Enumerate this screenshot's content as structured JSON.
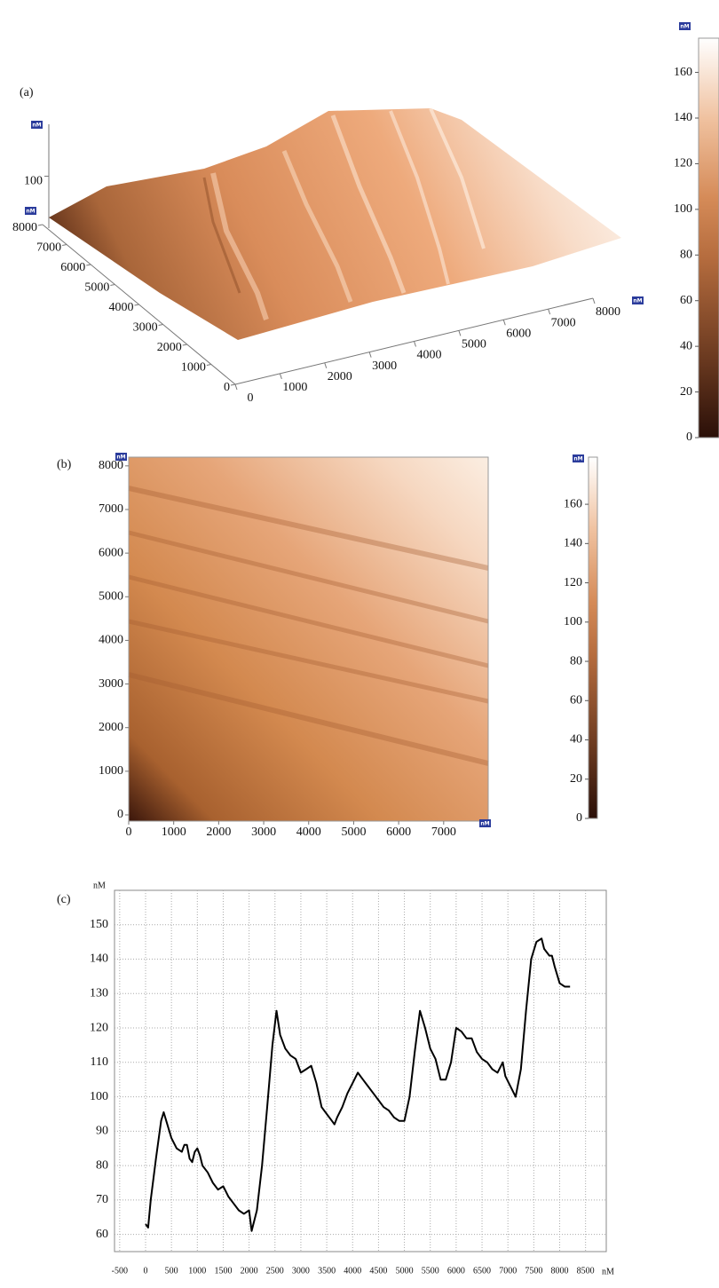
{
  "chart_data": [
    {
      "type": "surface3d",
      "panel_label": "(a)",
      "unit": "nM",
      "xlim": [
        0,
        8000
      ],
      "xticks": [
        0,
        1000,
        2000,
        3000,
        4000,
        5000,
        6000,
        7000,
        8000
      ],
      "ylim": [
        0,
        8000
      ],
      "yticks": [
        0,
        1000,
        2000,
        3000,
        4000,
        5000,
        6000,
        7000,
        8000
      ],
      "zlim": [
        0,
        200
      ],
      "zticks": [
        100
      ],
      "colorbar_lim": [
        0,
        175
      ],
      "colorbar_ticks": [
        0,
        20,
        40,
        60,
        80,
        100,
        120,
        140,
        160
      ]
    },
    {
      "type": "heatmap",
      "panel_label": "(b)",
      "unit": "nM",
      "xlim": [
        0,
        7990
      ],
      "xticks": [
        0,
        1000,
        2000,
        3000,
        4000,
        5000,
        6000,
        7000
      ],
      "ylim": [
        0,
        8200
      ],
      "yticks": [
        0,
        1000,
        2000,
        3000,
        4000,
        5000,
        6000,
        7000,
        8000
      ],
      "colorbar_lim": [
        0,
        184
      ],
      "colorbar_ticks": [
        0,
        20,
        40,
        60,
        80,
        100,
        120,
        140,
        160
      ]
    },
    {
      "type": "line",
      "panel_label": "(c)",
      "x_label": "nM",
      "y_label": "nM",
      "color": "#000000",
      "grid": true,
      "xlim": [
        -600,
        8900
      ],
      "xticks": [
        -500,
        0,
        500,
        1000,
        1500,
        2000,
        2500,
        3000,
        3500,
        4000,
        4500,
        5000,
        5500,
        6000,
        6500,
        7000,
        7500,
        8000,
        8500
      ],
      "ylim": [
        55,
        160
      ],
      "yticks": [
        60,
        70,
        80,
        90,
        100,
        110,
        120,
        130,
        140,
        150
      ],
      "x": [
        0,
        50,
        100,
        200,
        300,
        350,
        400,
        500,
        600,
        700,
        750,
        800,
        850,
        900,
        950,
        1000,
        1050,
        1100,
        1200,
        1300,
        1400,
        1500,
        1600,
        1700,
        1800,
        1900,
        2000,
        2050,
        2150,
        2250,
        2350,
        2450,
        2530,
        2600,
        2700,
        2800,
        2900,
        3000,
        3100,
        3200,
        3300,
        3400,
        3500,
        3600,
        3650,
        3700,
        3800,
        3900,
        4000,
        4100,
        4200,
        4300,
        4400,
        4500,
        4600,
        4700,
        4800,
        4900,
        5000,
        5100,
        5200,
        5300,
        5400,
        5500,
        5600,
        5700,
        5800,
        5900,
        6000,
        6100,
        6200,
        6300,
        6400,
        6500,
        6600,
        6700,
        6800,
        6900,
        6950,
        7050,
        7150,
        7250,
        7350,
        7450,
        7550,
        7650,
        7700,
        7800,
        7850,
        7900,
        8000,
        8100,
        8200
      ],
      "values": [
        63,
        62,
        70,
        82,
        93,
        95.5,
        93,
        88,
        85,
        84,
        86,
        86,
        82,
        81,
        84,
        85,
        83,
        80,
        78,
        75,
        73,
        74,
        71,
        69,
        67,
        66,
        67,
        61,
        67,
        80,
        97,
        115,
        125,
        118,
        114,
        112,
        111,
        107,
        108,
        109,
        104,
        97,
        95,
        93,
        92,
        94,
        97,
        101,
        104,
        107,
        105,
        103,
        101,
        99,
        97,
        96,
        94,
        93,
        93,
        100,
        113,
        125,
        120,
        114,
        111,
        105,
        105,
        110,
        120,
        119,
        117,
        117,
        113,
        111,
        110,
        108,
        107,
        110,
        106,
        103,
        100,
        108,
        125,
        140,
        145,
        146,
        143,
        141,
        141,
        138,
        133,
        132,
        132
      ]
    }
  ]
}
